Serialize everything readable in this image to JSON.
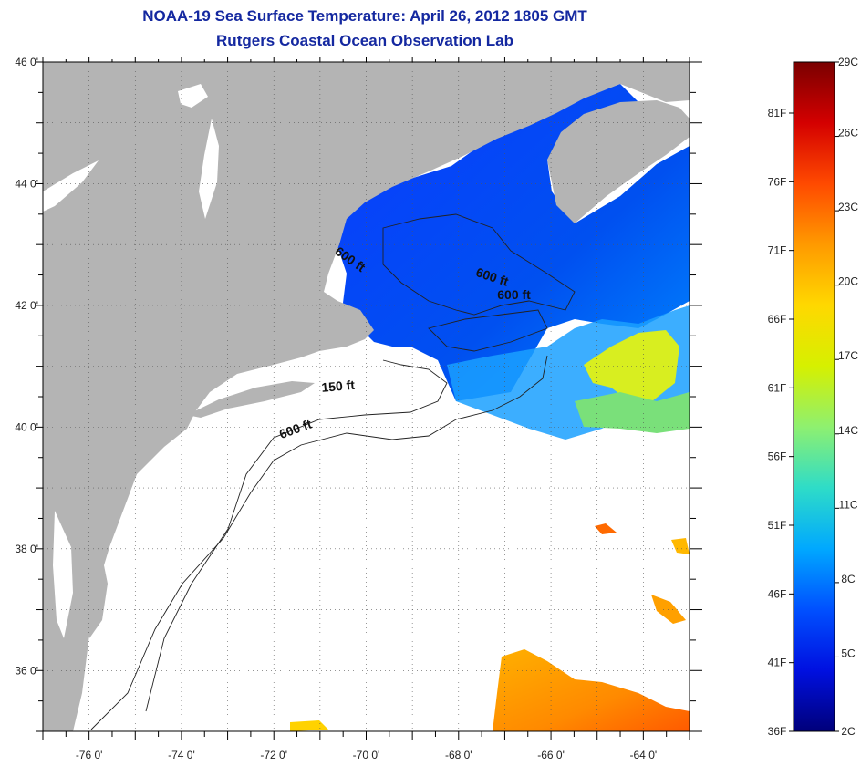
{
  "header": {
    "title_line1": "NOAA-19 Sea Surface Temperature:  April 26, 2012 1805 GMT",
    "title_line2": "Rutgers Coastal Ocean Observation Lab"
  },
  "map": {
    "lon_range": [
      -77,
      -63
    ],
    "lat_range": [
      35,
      46
    ],
    "x_ticks": [
      {
        "lon": -76,
        "label": "-76 0'"
      },
      {
        "lon": -74,
        "label": "-74 0'"
      },
      {
        "lon": -72,
        "label": "-72 0'"
      },
      {
        "lon": -70,
        "label": "-70 0'"
      },
      {
        "lon": -68,
        "label": "-68 0'"
      },
      {
        "lon": -66,
        "label": "-66 0'"
      },
      {
        "lon": -64,
        "label": "-64 0'"
      }
    ],
    "y_ticks": [
      {
        "lat": 46,
        "label": "46 0'"
      },
      {
        "lat": 44,
        "label": "44 0'"
      },
      {
        "lat": 42,
        "label": "42 0'"
      },
      {
        "lat": 40,
        "label": "40 0'"
      },
      {
        "lat": 38,
        "label": "38 0'"
      },
      {
        "lat": 36,
        "label": "36 0'"
      }
    ],
    "contour_labels": [
      {
        "text": "600 ft",
        "lon": -70.4,
        "lat": 42.7,
        "rotate": 35
      },
      {
        "text": "600 ft",
        "lon": -67.3,
        "lat": 42.4,
        "rotate": 18
      },
      {
        "text": "600 ft",
        "lon": -66.8,
        "lat": 42.1,
        "rotate": 0
      },
      {
        "text": "150 ft",
        "lon": -70.6,
        "lat": 40.6,
        "rotate": -5
      },
      {
        "text": "600 ft",
        "lon": -71.5,
        "lat": 39.9,
        "rotate": -20
      }
    ],
    "colors": {
      "land": "#b4b4b4",
      "water_nodata": "#ffffff",
      "grid": "#555555"
    }
  },
  "colorbar": {
    "celsius_labels": [
      "29C",
      "26C",
      "23C",
      "20C",
      "17C",
      "14C",
      "11C",
      "8C",
      "5C",
      "2C"
    ],
    "fahrenheit_labels": [
      "81F",
      "76F",
      "71F",
      "66F",
      "61F",
      "56F",
      "51F",
      "46F",
      "41F",
      "36F"
    ],
    "stops": [
      "#7a0000",
      "#d40000",
      "#ff4a00",
      "#ff9a00",
      "#ffd800",
      "#d6f000",
      "#8ef070",
      "#2edcc8",
      "#00a8ff",
      "#0050ff",
      "#0010e0",
      "#00007a"
    ]
  }
}
